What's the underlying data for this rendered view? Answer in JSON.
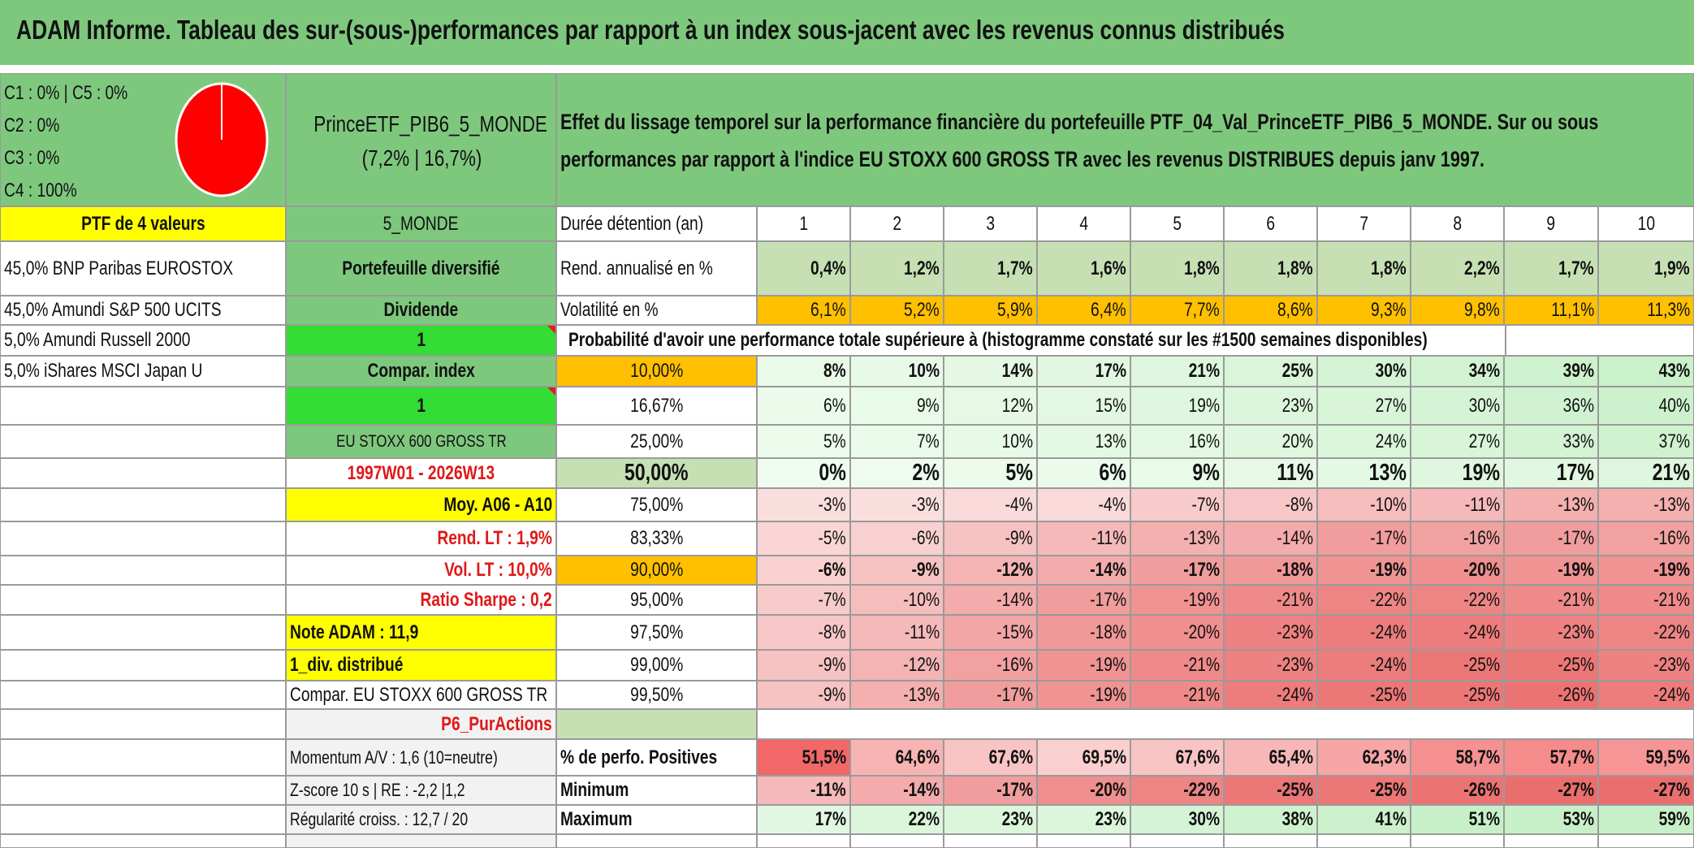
{
  "title": "ADAM Informe. Tableau des sur-(sous-)performances par rapport à un index sous-jacent avec les revenus connus distribués",
  "allocation": {
    "line1": "C1 : 0% | C5 : 0%",
    "line2": "C2 : 0%",
    "line3": "C3 : 0%",
    "line4": "C4 : 100%",
    "pie_color": "#ff0000"
  },
  "portfolio": {
    "name": "PrinceETF_PIB6_5_MONDE",
    "stats": "(7,2% | 16,7%)"
  },
  "description": {
    "line1": "Effet du lissage temporel sur la performance financière du portefeuille PTF_04_Val_PrinceETF_PIB6_5_MONDE. Sur ou sous",
    "line2": "performances par rapport à l'indice EU STOXX 600 GROSS TR avec les revenus DISTRIBUES depuis janv 1997."
  },
  "left_col": {
    "ptf_label": "PTF de 4 valeurs",
    "holdings": [
      "45,0% BNP Paribas EUROSTOX",
      "45,0% Amundi S&P 500 UCITS",
      "5,0% Amundi Russell 2000",
      "5,0% iShares MSCI Japan U"
    ]
  },
  "mid_col": {
    "zone": "5_MONDE",
    "type": "Portefeuille diversifié",
    "dividende": "Dividende",
    "div_value": "1",
    "compar": "Compar. index",
    "compar_value": "1",
    "index": "EU STOXX 600 GROSS TR",
    "period": "1997W01 - 2026W13",
    "moy": "Moy. A06 - A10",
    "rend_lt": "Rend. LT : 1,9%",
    "vol_lt": "Vol. LT : 10,0%",
    "sharpe": "Ratio Sharpe : 0,2",
    "note": "Note ADAM : 11,9",
    "div_distrib": "1_div. distribué",
    "compar_index": "Compar. EU STOXX 600 GROSS TR",
    "p6": "P6_PurActions",
    "momentum": "Momentum A/V : 1,6 (10=neutre)",
    "zscore": "Z-score 10 s | RE : -2,2 |1,2",
    "regularite": "Régularité croiss. : 12,7 / 20"
  },
  "table": {
    "duree_label": "Durée détention (an)",
    "years": [
      "1",
      "2",
      "3",
      "4",
      "5",
      "6",
      "7",
      "8",
      "9",
      "10"
    ],
    "rend_label": "Rend. annualisé en %",
    "rend": [
      "0,4%",
      "1,2%",
      "1,7%",
      "1,6%",
      "1,8%",
      "1,8%",
      "1,8%",
      "2,2%",
      "1,7%",
      "1,9%"
    ],
    "vol_label": "Volatilité en %",
    "vol": [
      "6,1%",
      "5,2%",
      "5,9%",
      "6,4%",
      "7,7%",
      "8,6%",
      "9,3%",
      "9,8%",
      "11,1%",
      "11,3%"
    ],
    "proba_label": "Probabilité d'avoir une performance totale supérieure à (histogramme constaté sur les #1500 semaines disponibles)",
    "quantiles": [
      {
        "label": "10,00%",
        "values": [
          "8%",
          "10%",
          "14%",
          "17%",
          "21%",
          "25%",
          "30%",
          "34%",
          "39%",
          "43%"
        ]
      },
      {
        "label": "16,67%",
        "values": [
          "6%",
          "9%",
          "12%",
          "15%",
          "19%",
          "23%",
          "27%",
          "30%",
          "36%",
          "40%"
        ]
      },
      {
        "label": "25,00%",
        "values": [
          "5%",
          "7%",
          "10%",
          "13%",
          "16%",
          "20%",
          "24%",
          "27%",
          "33%",
          "37%"
        ]
      },
      {
        "label": "50,00%",
        "values": [
          "0%",
          "2%",
          "5%",
          "6%",
          "9%",
          "11%",
          "13%",
          "19%",
          "17%",
          "21%"
        ]
      },
      {
        "label": "75,00%",
        "values": [
          "-3%",
          "-3%",
          "-4%",
          "-4%",
          "-7%",
          "-8%",
          "-10%",
          "-11%",
          "-13%",
          "-13%"
        ]
      },
      {
        "label": "83,33%",
        "values": [
          "-5%",
          "-6%",
          "-9%",
          "-11%",
          "-13%",
          "-14%",
          "-17%",
          "-16%",
          "-17%",
          "-16%"
        ]
      },
      {
        "label": "90,00%",
        "values": [
          "-6%",
          "-9%",
          "-12%",
          "-14%",
          "-17%",
          "-18%",
          "-19%",
          "-20%",
          "-19%",
          "-19%"
        ]
      },
      {
        "label": "95,00%",
        "values": [
          "-7%",
          "-10%",
          "-14%",
          "-17%",
          "-19%",
          "-21%",
          "-22%",
          "-22%",
          "-21%",
          "-21%"
        ]
      },
      {
        "label": "97,50%",
        "values": [
          "-8%",
          "-11%",
          "-15%",
          "-18%",
          "-20%",
          "-23%",
          "-24%",
          "-24%",
          "-23%",
          "-22%"
        ]
      },
      {
        "label": "99,00%",
        "values": [
          "-9%",
          "-12%",
          "-16%",
          "-19%",
          "-21%",
          "-23%",
          "-24%",
          "-25%",
          "-25%",
          "-23%"
        ]
      },
      {
        "label": "99,50%",
        "values": [
          "-9%",
          "-13%",
          "-17%",
          "-19%",
          "-21%",
          "-24%",
          "-25%",
          "-25%",
          "-26%",
          "-24%"
        ]
      }
    ],
    "pos_label": "% de perfo. Positives",
    "pos": [
      "51,5%",
      "64,6%",
      "67,6%",
      "69,5%",
      "67,6%",
      "65,4%",
      "62,3%",
      "58,7%",
      "57,7%",
      "59,5%"
    ],
    "min_label": "Minimum",
    "min": [
      "-11%",
      "-14%",
      "-17%",
      "-20%",
      "-22%",
      "-25%",
      "-25%",
      "-26%",
      "-27%",
      "-27%"
    ],
    "max_label": "Maximum",
    "max": [
      "17%",
      "22%",
      "23%",
      "23%",
      "30%",
      "38%",
      "41%",
      "51%",
      "53%",
      "59%"
    ]
  },
  "colors": {
    "header_green": "#7ec87e",
    "bright_green": "#33dd33",
    "yellow": "#ffff00",
    "orange": "#ffc000",
    "light_green": "#c6e0b4",
    "label_gray": "#f2f2f2"
  }
}
